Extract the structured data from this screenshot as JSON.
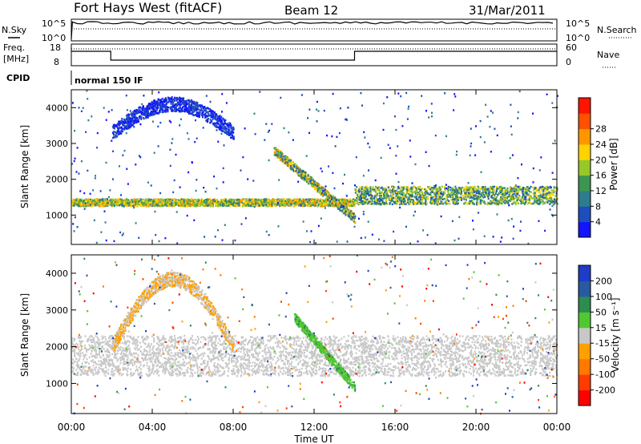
{
  "header": {
    "station": "Fort Hays West (fitACF)",
    "beam": "Beam 12",
    "date": "31/Mar/2011"
  },
  "panels": {
    "nsky": {
      "label": "N.Sky",
      "top_tick": "10^5",
      "bottom_tick": "10^0"
    },
    "nsearch": {
      "label": "N.Search",
      "top_tick": "10^5",
      "bottom_tick": "10^0"
    },
    "freq": {
      "label_line1": "Freq.",
      "label_line2": "[MHz]",
      "top_tick": "18",
      "bottom_tick": "8"
    },
    "nave": {
      "label": "Nave",
      "top_tick": "60",
      "bottom_tick": "0"
    },
    "cpid": {
      "label": "CPID",
      "value": "normal 150 IF"
    }
  },
  "chart_data": [
    {
      "type": "heatmap",
      "title": "",
      "xlabel": "",
      "ylabel": "Slant Range [km]",
      "xlim": [
        "00:00",
        "24:00"
      ],
      "ylim": [
        180,
        4500
      ],
      "yticks": [
        "1000",
        "2000",
        "3000",
        "4000"
      ],
      "colorbar": {
        "label": "Power [dB]",
        "ticks": [
          "4",
          "8",
          "12",
          "16",
          "20",
          "24",
          "28"
        ],
        "colors": [
          "#1414ff",
          "#1e4ebe",
          "#2d7d8c",
          "#3c9650",
          "#96c828",
          "#ffd200",
          "#ff9600",
          "#ff5000",
          "#ff1400"
        ]
      },
      "features": [
        {
          "name": "near-range band",
          "time_start": "00:00",
          "time_end": "14:00",
          "range_km": [
            1250,
            1450
          ],
          "power_db": [
            12,
            28
          ]
        },
        {
          "name": "post-14UT band",
          "time_start": "14:00",
          "time_end": "24:00",
          "range_km": [
            1300,
            1800
          ],
          "power_db": [
            8,
            24
          ]
        },
        {
          "name": "distant arc",
          "time_start": "02:00",
          "time_end": "08:30",
          "range_km": [
            3300,
            4300
          ],
          "power_db": [
            4,
            10
          ]
        },
        {
          "name": "dusk descending trace",
          "time_start": "10:30",
          "time_end": "14:00",
          "range_km": [
            900,
            2800
          ],
          "power_db": [
            8,
            28
          ]
        }
      ]
    },
    {
      "type": "heatmap",
      "title": "",
      "xlabel": "Time UT",
      "ylabel": "Slant Range [km]",
      "xlim": [
        "00:00",
        "24:00"
      ],
      "ylim": [
        180,
        4500
      ],
      "xticks": [
        "00:00",
        "04:00",
        "08:00",
        "12:00",
        "16:00",
        "20:00",
        "00:00"
      ],
      "yticks": [
        "1000",
        "2000",
        "3000",
        "4000"
      ],
      "colorbar": {
        "label": "Velocity [m s⁻¹]",
        "ticks": [
          "200",
          "100",
          "50",
          "15",
          "-15",
          "-50",
          "-100",
          "-200"
        ],
        "colors": [
          "#1e3cc8",
          "#285aa0",
          "#2d8c50",
          "#50c832",
          "#c8c8c8",
          "#ffa000",
          "#ff7800",
          "#ff3c00",
          "#ff0000"
        ]
      },
      "features": [
        {
          "name": "ground scatter band",
          "time_start": "00:00",
          "time_end": "24:00",
          "range_km": [
            1200,
            2300
          ],
          "velocity_ms": [
            -15,
            15
          ]
        },
        {
          "name": "receding trace",
          "time_start": "11:30",
          "time_end": "14:00",
          "range_km": [
            900,
            2800
          ],
          "velocity_ms": [
            15,
            100
          ]
        },
        {
          "name": "approaching arc",
          "time_start": "02:00",
          "time_end": "08:30",
          "range_km": [
            2000,
            4300
          ],
          "velocity_ms": [
            -100,
            -15
          ]
        }
      ]
    }
  ]
}
